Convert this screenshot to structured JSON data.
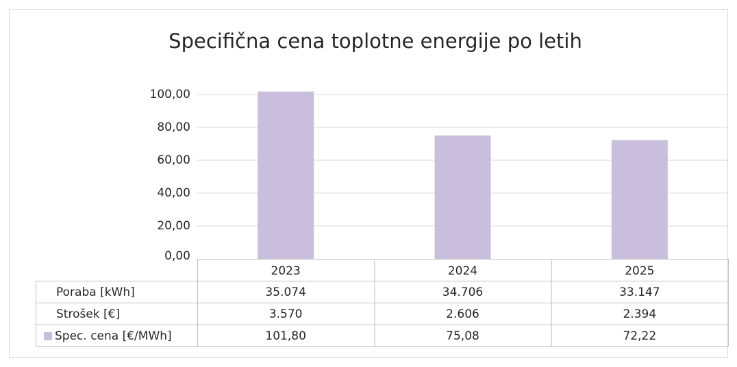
{
  "chart_data": {
    "type": "bar",
    "title": "Specifična cena toplotne energije po letih",
    "categories": [
      "2023",
      "2024",
      "2025"
    ],
    "series": [
      {
        "name": "Spec. cena [€/MWh]",
        "color": "#c9bfdc",
        "values": [
          101.8,
          75.08,
          72.22
        ],
        "value_labels": [
          "101,80",
          "75,08",
          "72,22"
        ]
      }
    ],
    "data_table": [
      {
        "name": "Poraba [kWh]",
        "values": [
          35074,
          34706,
          33147
        ],
        "value_labels": [
          "35.074",
          "34.706",
          "33.147"
        ]
      },
      {
        "name": "Strošek [€]",
        "values": [
          3570,
          2606,
          2394
        ],
        "value_labels": [
          "3.570",
          "2.606",
          "2.394"
        ]
      }
    ],
    "ylim": [
      0,
      110
    ],
    "yticks": [
      {
        "value": 0,
        "label": "0,00"
      },
      {
        "value": 20,
        "label": "20,00"
      },
      {
        "value": 40,
        "label": "40,00"
      },
      {
        "value": 60,
        "label": "60,00"
      },
      {
        "value": 80,
        "label": "80,00"
      },
      {
        "value": 100,
        "label": "100,00"
      }
    ],
    "grid": true
  }
}
